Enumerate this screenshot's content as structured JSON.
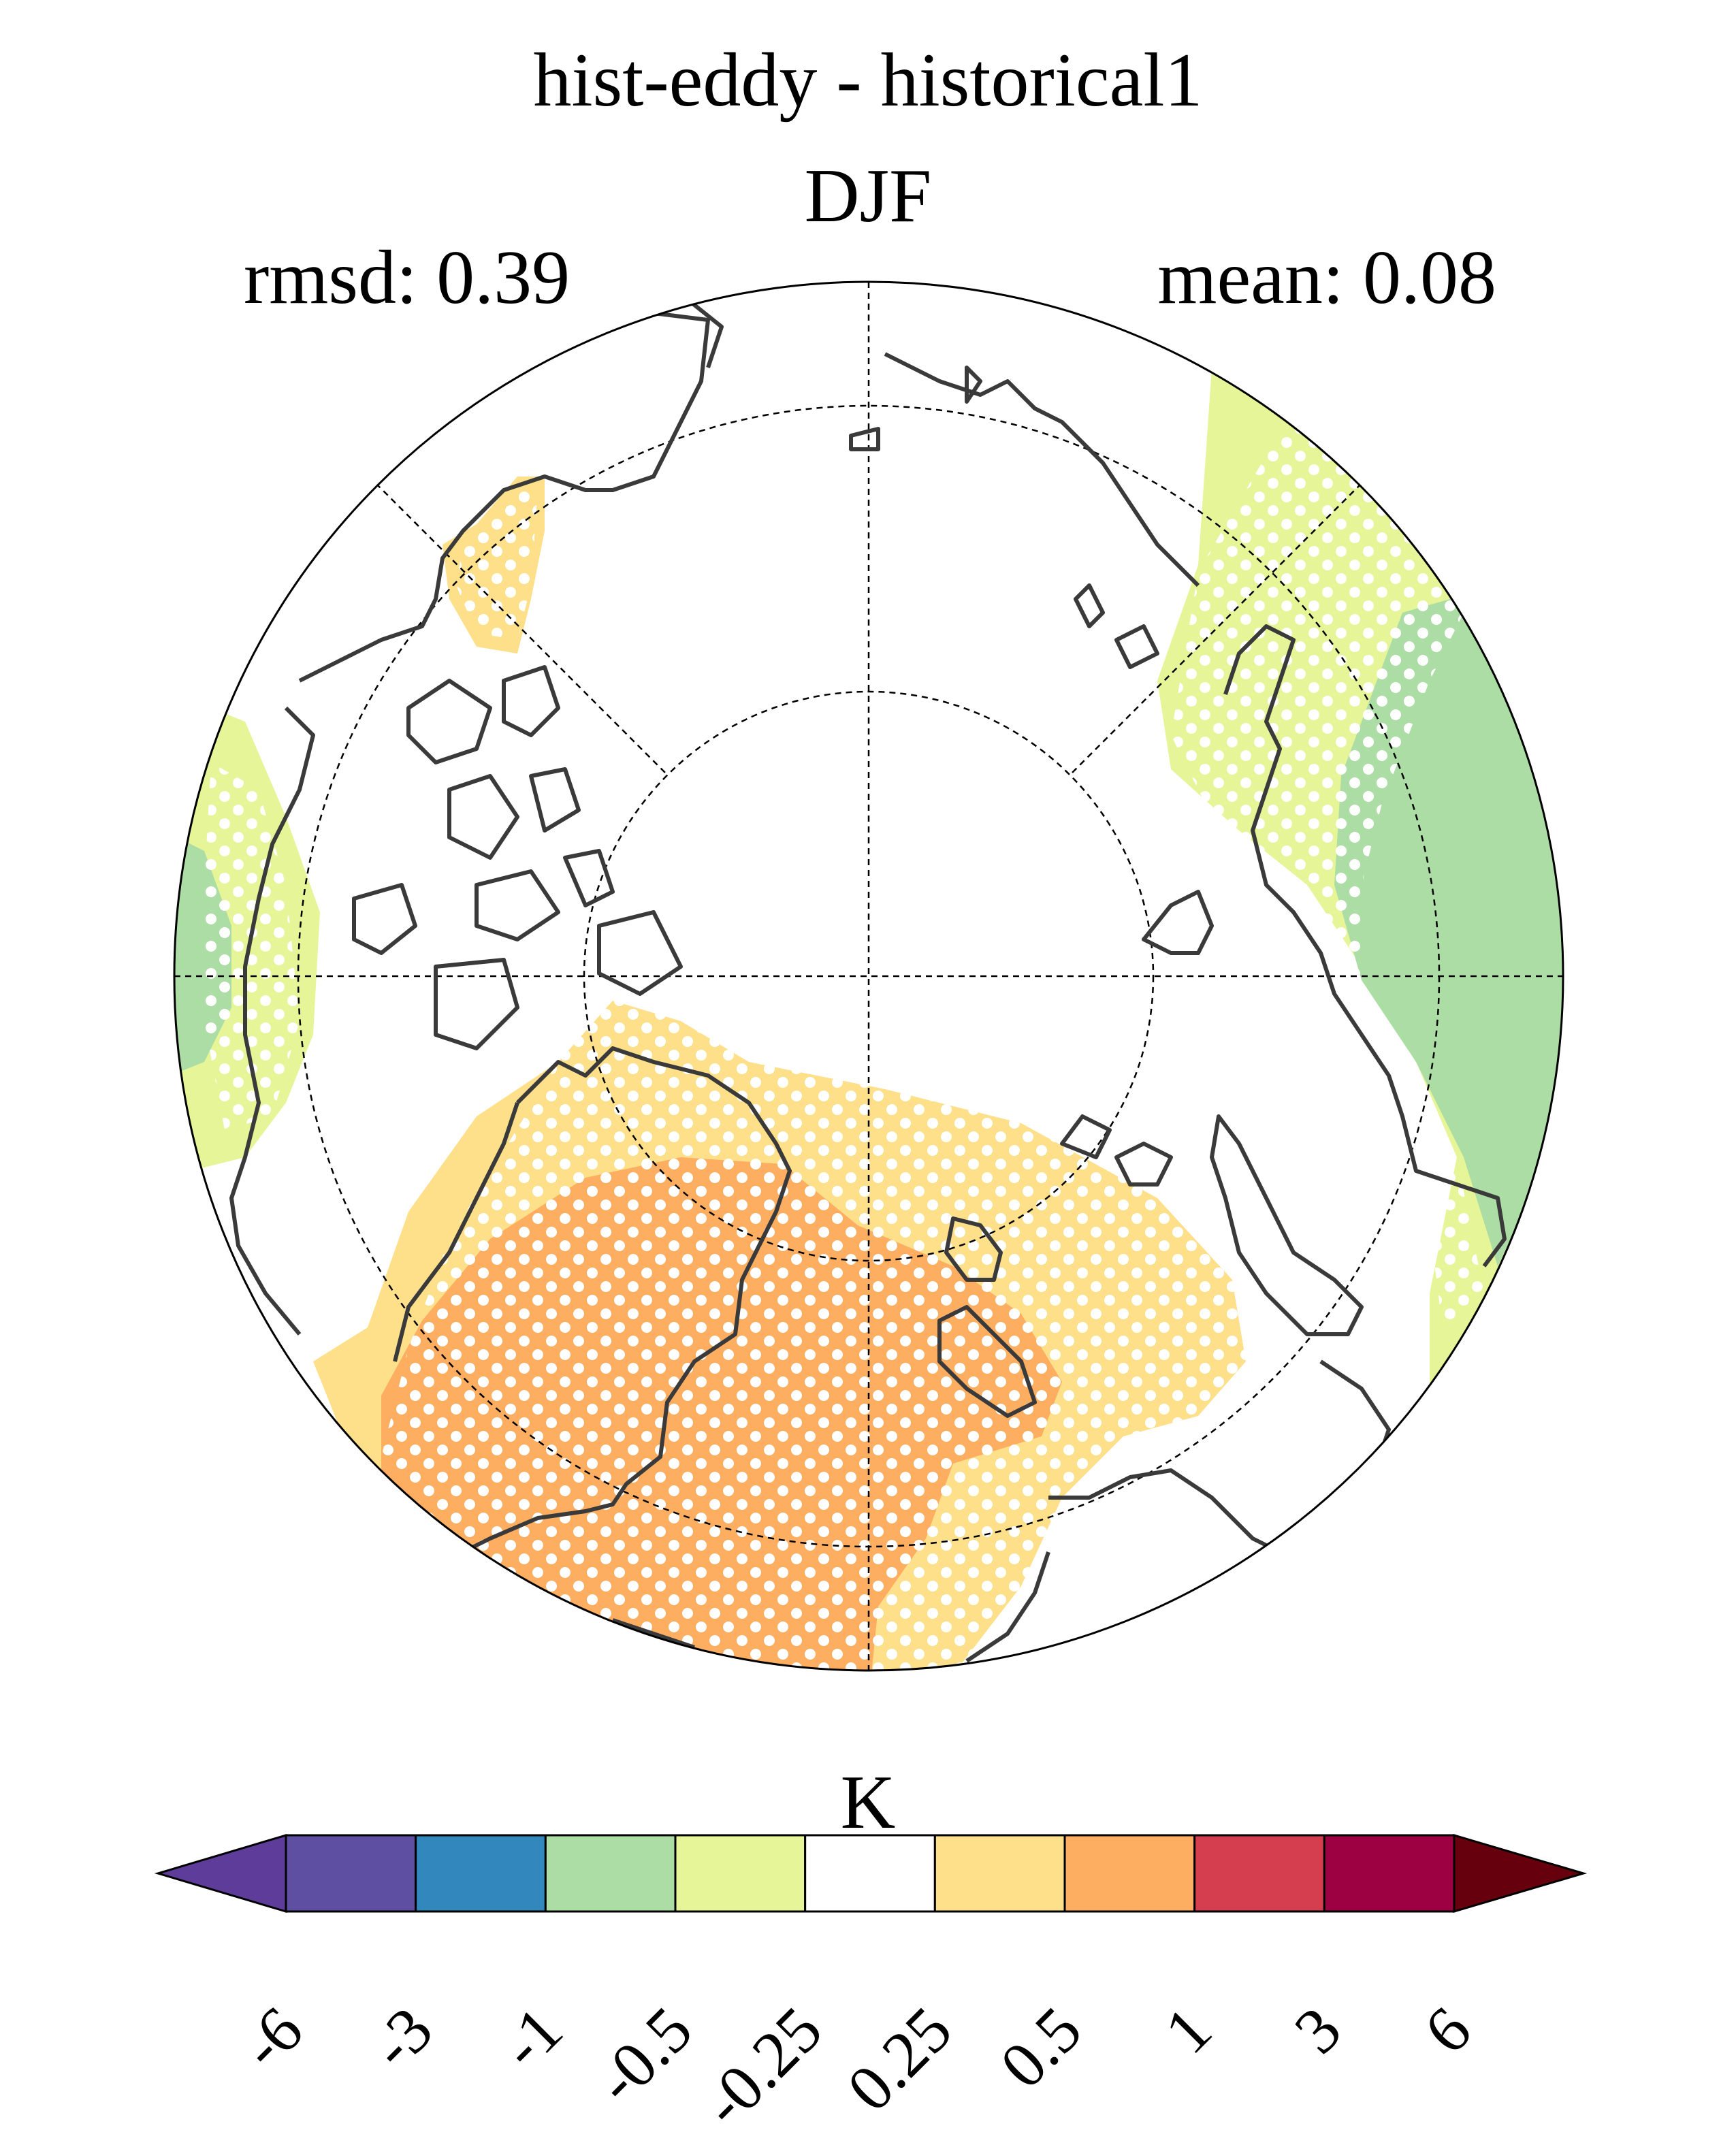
{
  "figure": {
    "title": "hist-eddy - historical1",
    "season": "DJF",
    "rmsd_label": "rmsd: 0.39",
    "mean_label": "mean: 0.08"
  },
  "colorbar": {
    "unit": "K",
    "tick_labels": [
      "-6",
      "-3",
      "-1",
      "-0.5",
      "-0.25",
      "0.25",
      "0.5",
      "1",
      "3",
      "6"
    ],
    "colors": [
      "#5e3c99",
      "#5e4fa2",
      "#3288bd",
      "#abdda4",
      "#e6f598",
      "#ffffff",
      "#fee08b",
      "#fdae61",
      "#d53e4f",
      "#9e0142",
      "#67000d"
    ],
    "extend": "both"
  },
  "map": {
    "projection": "north polar stereographic",
    "features": [
      "coastlines",
      "graticule",
      "significance stippling"
    ]
  }
}
